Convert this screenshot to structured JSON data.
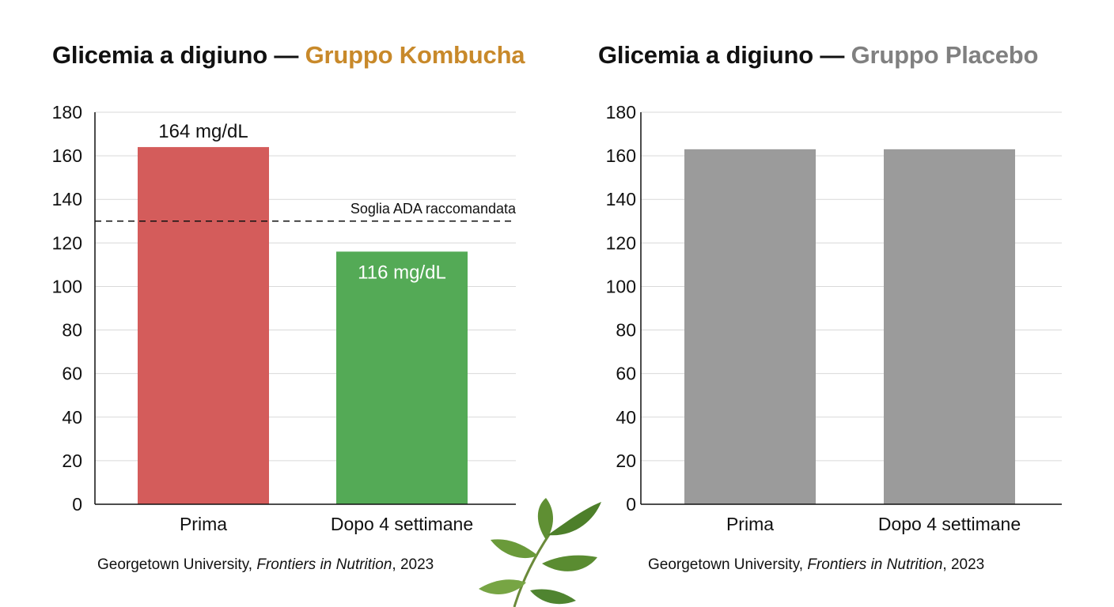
{
  "colors": {
    "title_main": "#111111",
    "accent_kombucha": "#c8892a",
    "accent_placebo": "#808080",
    "bar_prima_kombucha": "#d45c5b",
    "bar_dopo_kombucha": "#54aa56",
    "bar_placebo": "#9b9b9b",
    "grid": "#d9d9d9",
    "axis": "#111111"
  },
  "decoration": {
    "icon": "leaf-sprig-icon"
  },
  "chart_data": [
    {
      "type": "bar",
      "title_main": "Glicemia a digiuno — ",
      "title_accent": "Gruppo Kombucha",
      "xlabel": "",
      "ylabel": "",
      "ylim": [
        0,
        180
      ],
      "yticks": [
        "0",
        "20",
        "40",
        "60",
        "80",
        "100",
        "120",
        "140",
        "160",
        "180"
      ],
      "grid": true,
      "categories": [
        "Prima",
        "Dopo 4 settimane"
      ],
      "values": [
        164,
        116
      ],
      "data_labels": [
        "164 mg/dL",
        "116 mg/dL"
      ],
      "reference_line": {
        "value": 130,
        "label": "Soglia ADA raccomandata",
        "style": "dashed"
      },
      "source_prefix": "Georgetown University, ",
      "source_journal": "Frontiers in Nutrition",
      "source_suffix": ", 2023"
    },
    {
      "type": "bar",
      "title_main": "Glicemia a digiuno — ",
      "title_accent": "Gruppo Placebo",
      "xlabel": "",
      "ylabel": "",
      "ylim": [
        0,
        180
      ],
      "yticks": [
        "0",
        "20",
        "40",
        "60",
        "80",
        "100",
        "120",
        "140",
        "160",
        "180"
      ],
      "grid": true,
      "categories": [
        "Prima",
        "Dopo 4 settimane"
      ],
      "values": [
        163,
        163
      ],
      "source_prefix": "Georgetown University, ",
      "source_journal": "Frontiers in Nutrition",
      "source_suffix": ", 2023"
    }
  ]
}
